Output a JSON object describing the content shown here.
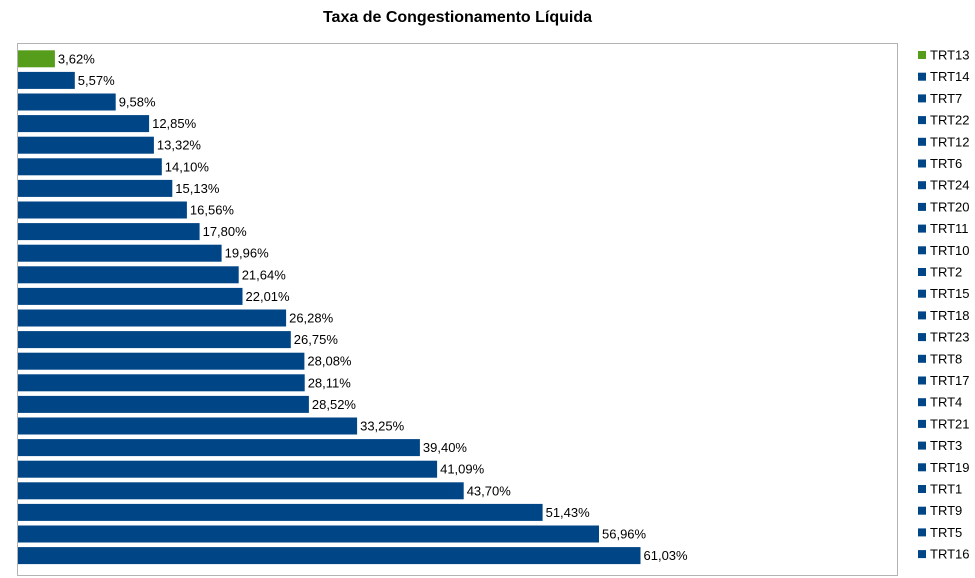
{
  "chart_data": {
    "type": "bar",
    "orientation": "horizontal",
    "title": "Taxa de Congestionamento Líquida",
    "categories": [
      "TRT13",
      "TRT14",
      "TRT7",
      "TRT22",
      "TRT12",
      "TRT6",
      "TRT24",
      "TRT20",
      "TRT11",
      "TRT10",
      "TRT2",
      "TRT15",
      "TRT18",
      "TRT23",
      "TRT8",
      "TRT17",
      "TRT4",
      "TRT21",
      "TRT3",
      "TRT19",
      "TRT1",
      "TRT9",
      "TRT5",
      "TRT16"
    ],
    "values": [
      3.62,
      5.57,
      9.58,
      12.85,
      13.32,
      14.1,
      15.13,
      16.56,
      17.8,
      19.96,
      21.64,
      22.01,
      26.28,
      26.75,
      28.08,
      28.11,
      28.52,
      33.25,
      39.4,
      41.09,
      43.7,
      51.43,
      56.96,
      61.03
    ],
    "value_labels": [
      "3,62%",
      "5,57%",
      "9,58%",
      "12,85%",
      "13,32%",
      "14,10%",
      "15,13%",
      "16,56%",
      "17,80%",
      "19,96%",
      "21,64%",
      "22,01%",
      "26,28%",
      "26,75%",
      "28,08%",
      "28,11%",
      "28,52%",
      "33,25%",
      "39,40%",
      "41,09%",
      "43,70%",
      "51,43%",
      "56,96%",
      "61,03%"
    ],
    "colors": {
      "highlight": "#579d1c",
      "default": "#004586"
    },
    "highlight_category": "TRT13",
    "xlim": [
      0,
      75
    ],
    "grid": false,
    "legend_position": "right"
  }
}
